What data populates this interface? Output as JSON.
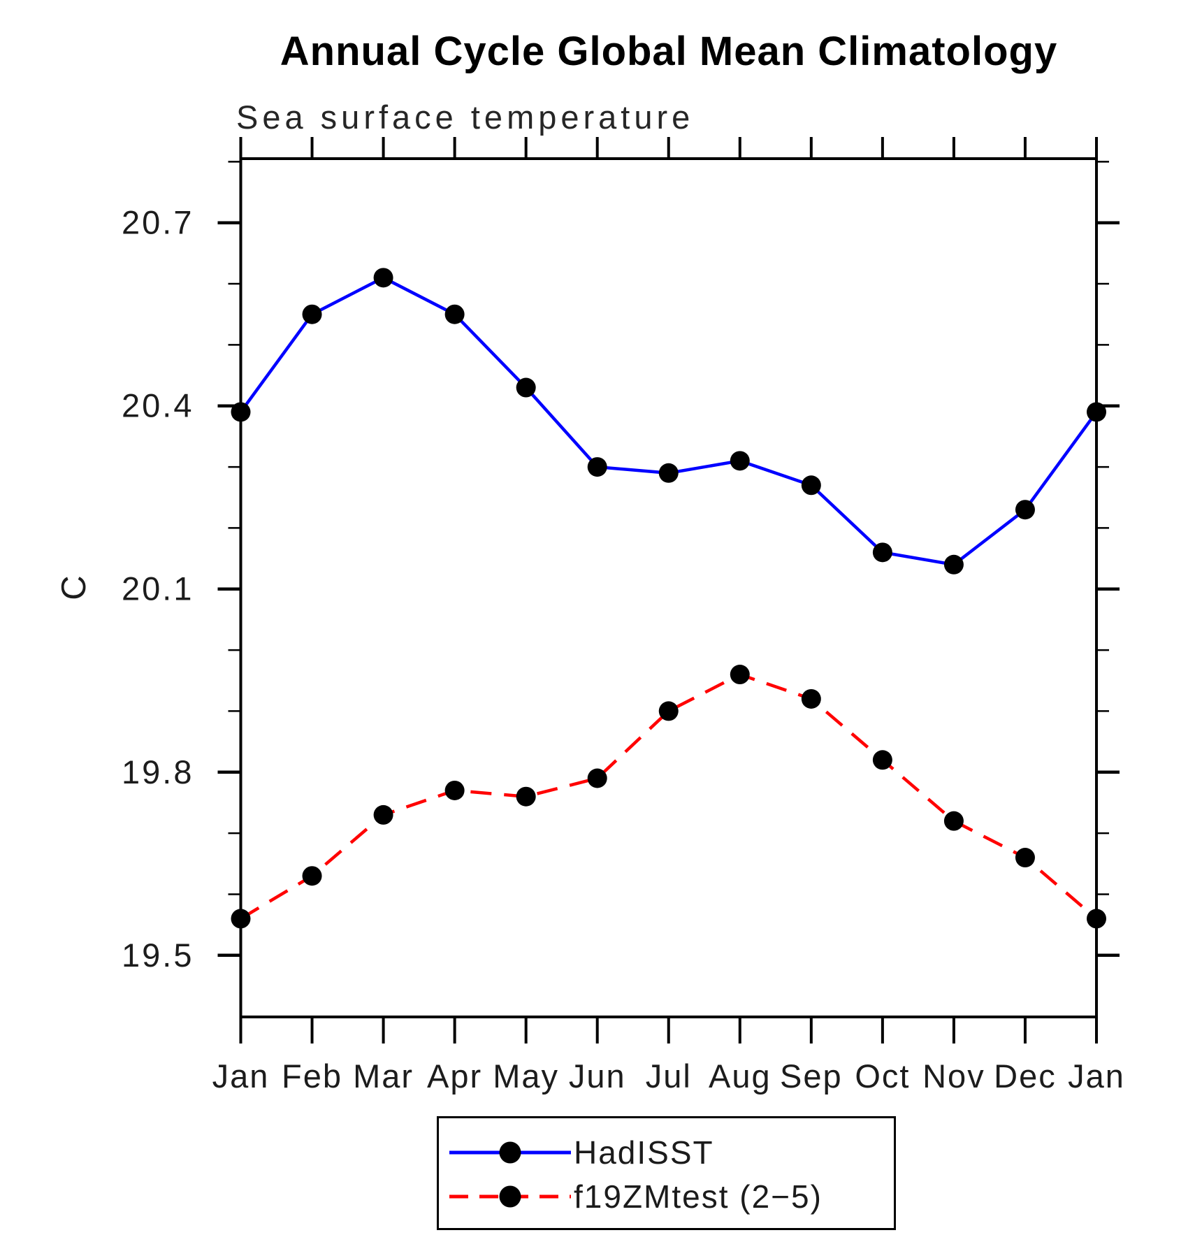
{
  "page": {
    "background": "#ffffff"
  },
  "chart_data": {
    "type": "line",
    "title": "Annual Cycle Global Mean Climatology",
    "subtitle": "Sea surface temperature",
    "ylabel": "C",
    "xlabel": "",
    "categories": [
      "Jan",
      "Feb",
      "Mar",
      "Apr",
      "May",
      "Jun",
      "Jul",
      "Aug",
      "Sep",
      "Oct",
      "Nov",
      "Dec",
      "Jan"
    ],
    "ylim": [
      19.399,
      20.805
    ],
    "yticks_major": {
      "values": [
        19.5,
        19.8,
        20.1,
        20.4,
        20.7
      ],
      "labels": [
        "19.5",
        "19.8",
        "20.1",
        "20.4",
        "20.7"
      ]
    },
    "yticks_minor": [
      19.6,
      19.7,
      19.9,
      20.0,
      20.2,
      20.3,
      20.5,
      20.6,
      20.8
    ],
    "grid": false,
    "legend_position": "bottom-center-box",
    "axis_color": "#000000",
    "label_color": "#1c1c1c",
    "series": [
      {
        "name": "HadISST",
        "color": "#0000ff",
        "line_style": "solid",
        "marker": "circle",
        "marker_color": "#000000",
        "values": [
          20.39,
          20.55,
          20.61,
          20.55,
          20.43,
          20.3,
          20.29,
          20.31,
          20.27,
          20.16,
          20.14,
          20.23,
          20.39
        ]
      },
      {
        "name": "f19ZMtest (2−5)",
        "color": "#ff0000",
        "line_style": "dashed",
        "marker": "circle",
        "marker_color": "#000000",
        "values": [
          19.56,
          19.63,
          19.73,
          19.77,
          19.76,
          19.79,
          19.9,
          19.96,
          19.92,
          19.82,
          19.72,
          19.66,
          19.56
        ]
      }
    ]
  }
}
